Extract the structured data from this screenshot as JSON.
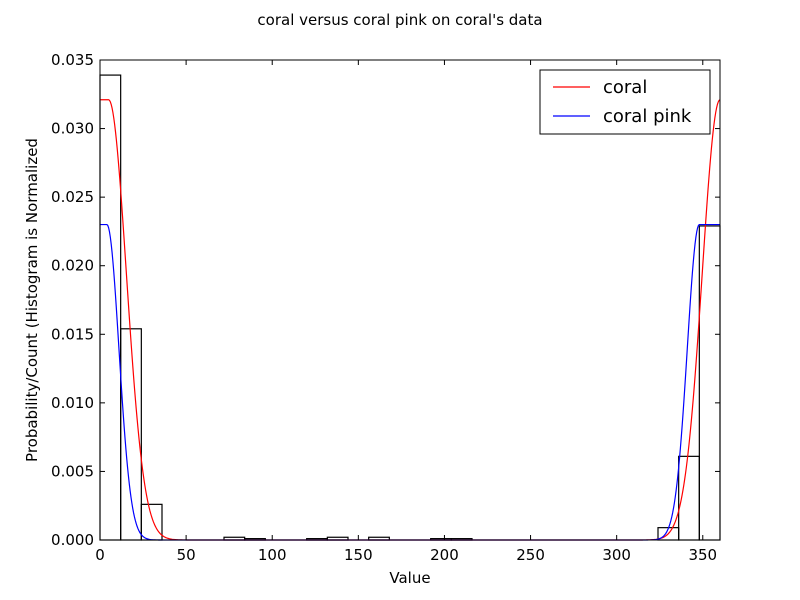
{
  "chart_data": {
    "type": "histogram+line",
    "title": "coral versus coral pink on coral's data",
    "xlabel": "Value",
    "ylabel": "Probability/Count (Histogram is Normalized",
    "xlim": [
      0,
      360
    ],
    "ylim": [
      0,
      0.035
    ],
    "xticks": [
      0,
      50,
      100,
      150,
      200,
      250,
      300,
      350
    ],
    "yticks": [
      0.0,
      0.005,
      0.01,
      0.015,
      0.02,
      0.025,
      0.03,
      0.035
    ],
    "xtick_labels": [
      "0",
      "50",
      "100",
      "150",
      "200",
      "250",
      "300",
      "350"
    ],
    "ytick_labels": [
      "0.000",
      "0.005",
      "0.010",
      "0.015",
      "0.020",
      "0.025",
      "0.030",
      "0.035"
    ],
    "legend_position": "top-right",
    "histogram": {
      "bin_width": 12,
      "bins": [
        {
          "start": 0,
          "value": 0.0339
        },
        {
          "start": 12,
          "value": 0.0154
        },
        {
          "start": 24,
          "value": 0.0026
        },
        {
          "start": 72,
          "value": 0.0002
        },
        {
          "start": 84,
          "value": 0.0001
        },
        {
          "start": 120,
          "value": 0.0001
        },
        {
          "start": 132,
          "value": 0.0002
        },
        {
          "start": 156,
          "value": 0.0002
        },
        {
          "start": 192,
          "value": 0.0001
        },
        {
          "start": 204,
          "value": 0.0001
        },
        {
          "start": 324,
          "value": 0.0009
        },
        {
          "start": 336,
          "value": 0.0061
        },
        {
          "start": 348,
          "value": 0.0229
        }
      ]
    },
    "series": [
      {
        "name": "coral",
        "color": "#ff0000",
        "peak": 0.0321,
        "flat_low": 0,
        "flat_high": 5,
        "sigma": 10.3,
        "period": 360
      },
      {
        "name": "coral pink",
        "color": "#0000ff",
        "peak": 0.023,
        "flat_low": -12,
        "flat_high": 4,
        "sigma": 7.0,
        "period": 360
      }
    ]
  }
}
